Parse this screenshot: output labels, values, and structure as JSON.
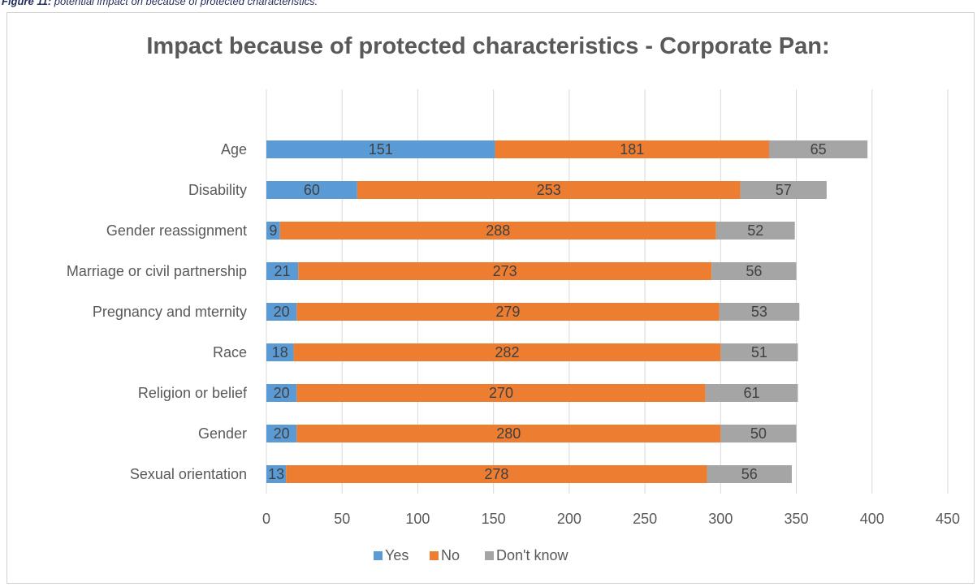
{
  "caption": {
    "label": "Figure 11:",
    "text": "potential impact on because of protected characteristics."
  },
  "chart_data": {
    "type": "bar",
    "orientation": "horizontal",
    "stacked": true,
    "title": "Impact because of protected characteristics - Corporate Pan:",
    "categories": [
      "Age",
      "Disability",
      "Gender reassignment",
      "Marriage or civil partnership",
      "Pregnancy and mternity",
      "Race",
      "Religion or belief",
      "Gender",
      "Sexual orientation"
    ],
    "series": [
      {
        "name": "Yes",
        "color": "#5b9bd5",
        "values": [
          151,
          60,
          9,
          21,
          20,
          18,
          20,
          20,
          13
        ]
      },
      {
        "name": "No",
        "color": "#ed7d31",
        "values": [
          181,
          253,
          288,
          273,
          279,
          282,
          270,
          280,
          278
        ]
      },
      {
        "name": "Don't know",
        "color": "#a5a5a5",
        "values": [
          65,
          57,
          52,
          56,
          53,
          51,
          61,
          50,
          56
        ]
      }
    ],
    "xlim": [
      0,
      450
    ],
    "xticks": [
      0,
      50,
      100,
      150,
      200,
      250,
      300,
      350,
      400,
      450
    ],
    "grid": "vertical",
    "legend": "bottom",
    "data_labels": true
  }
}
